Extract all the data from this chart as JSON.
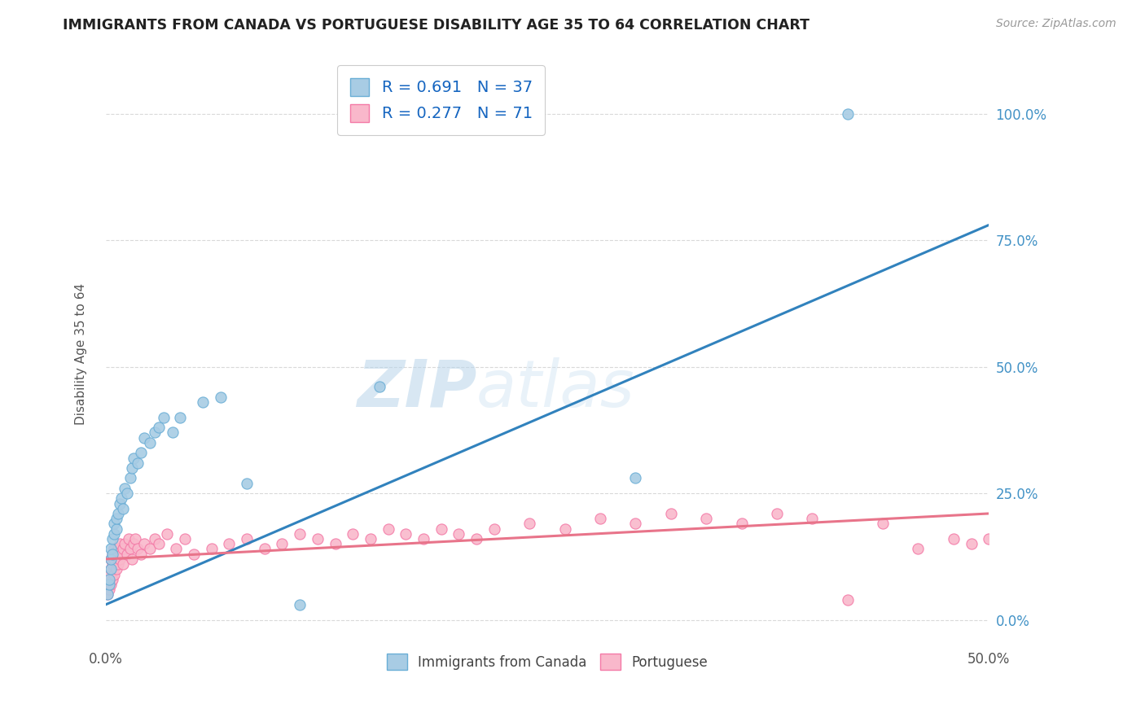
{
  "title": "IMMIGRANTS FROM CANADA VS PORTUGUESE DISABILITY AGE 35 TO 64 CORRELATION CHART",
  "source": "Source: ZipAtlas.com",
  "ylabel": "Disability Age 35 to 64",
  "xlim": [
    0.0,
    0.5
  ],
  "ylim": [
    -0.05,
    1.1
  ],
  "yticks": [
    0.0,
    0.25,
    0.5,
    0.75,
    1.0
  ],
  "ytick_labels": [
    "0.0%",
    "25.0%",
    "50.0%",
    "75.0%",
    "100.0%"
  ],
  "xticks": [
    0.0,
    0.5
  ],
  "xtick_labels": [
    "0.0%",
    "50.0%"
  ],
  "canada_color": "#a8cce4",
  "canada_edge_color": "#6aaed6",
  "portuguese_color": "#f9b8cb",
  "portuguese_edge_color": "#f47aa7",
  "canada_line_color": "#3182bd",
  "portuguese_line_color": "#e8748a",
  "canada_r": 0.691,
  "canada_n": 37,
  "portuguese_r": 0.277,
  "portuguese_n": 71,
  "legend_label_canada": "Immigrants from Canada",
  "legend_label_portuguese": "Portuguese",
  "background_color": "#ffffff",
  "grid_color": "#d9d9d9",
  "canada_scatter_x": [
    0.001,
    0.002,
    0.002,
    0.003,
    0.003,
    0.003,
    0.004,
    0.004,
    0.005,
    0.005,
    0.006,
    0.006,
    0.007,
    0.008,
    0.009,
    0.01,
    0.011,
    0.012,
    0.014,
    0.015,
    0.016,
    0.018,
    0.02,
    0.022,
    0.025,
    0.028,
    0.03,
    0.033,
    0.038,
    0.042,
    0.055,
    0.065,
    0.08,
    0.11,
    0.155,
    0.3,
    0.42
  ],
  "canada_scatter_y": [
    0.05,
    0.07,
    0.08,
    0.1,
    0.12,
    0.14,
    0.13,
    0.16,
    0.17,
    0.19,
    0.18,
    0.2,
    0.21,
    0.23,
    0.24,
    0.22,
    0.26,
    0.25,
    0.28,
    0.3,
    0.32,
    0.31,
    0.33,
    0.36,
    0.35,
    0.37,
    0.38,
    0.4,
    0.37,
    0.4,
    0.43,
    0.44,
    0.27,
    0.03,
    0.46,
    0.28,
    1.0
  ],
  "portuguese_scatter_x": [
    0.001,
    0.001,
    0.002,
    0.002,
    0.003,
    0.003,
    0.003,
    0.004,
    0.004,
    0.004,
    0.005,
    0.005,
    0.005,
    0.006,
    0.006,
    0.007,
    0.007,
    0.008,
    0.008,
    0.009,
    0.01,
    0.01,
    0.011,
    0.012,
    0.013,
    0.014,
    0.015,
    0.016,
    0.017,
    0.018,
    0.02,
    0.022,
    0.025,
    0.028,
    0.03,
    0.035,
    0.04,
    0.045,
    0.05,
    0.06,
    0.07,
    0.08,
    0.09,
    0.1,
    0.11,
    0.12,
    0.13,
    0.14,
    0.15,
    0.16,
    0.17,
    0.18,
    0.19,
    0.2,
    0.21,
    0.22,
    0.24,
    0.26,
    0.28,
    0.3,
    0.32,
    0.34,
    0.36,
    0.38,
    0.4,
    0.42,
    0.44,
    0.46,
    0.48,
    0.49,
    0.5
  ],
  "portuguese_scatter_y": [
    0.05,
    0.08,
    0.06,
    0.09,
    0.07,
    0.1,
    0.12,
    0.08,
    0.11,
    0.13,
    0.09,
    0.12,
    0.14,
    0.1,
    0.13,
    0.11,
    0.14,
    0.12,
    0.15,
    0.13,
    0.11,
    0.14,
    0.15,
    0.13,
    0.16,
    0.14,
    0.12,
    0.15,
    0.16,
    0.14,
    0.13,
    0.15,
    0.14,
    0.16,
    0.15,
    0.17,
    0.14,
    0.16,
    0.13,
    0.14,
    0.15,
    0.16,
    0.14,
    0.15,
    0.17,
    0.16,
    0.15,
    0.17,
    0.16,
    0.18,
    0.17,
    0.16,
    0.18,
    0.17,
    0.16,
    0.18,
    0.19,
    0.18,
    0.2,
    0.19,
    0.21,
    0.2,
    0.19,
    0.21,
    0.2,
    0.04,
    0.19,
    0.14,
    0.16,
    0.15,
    0.16
  ],
  "canada_line_x": [
    0.0,
    0.5
  ],
  "canada_line_y": [
    0.03,
    0.78
  ],
  "portuguese_line_x": [
    0.0,
    0.5
  ],
  "portuguese_line_y": [
    0.12,
    0.21
  ]
}
